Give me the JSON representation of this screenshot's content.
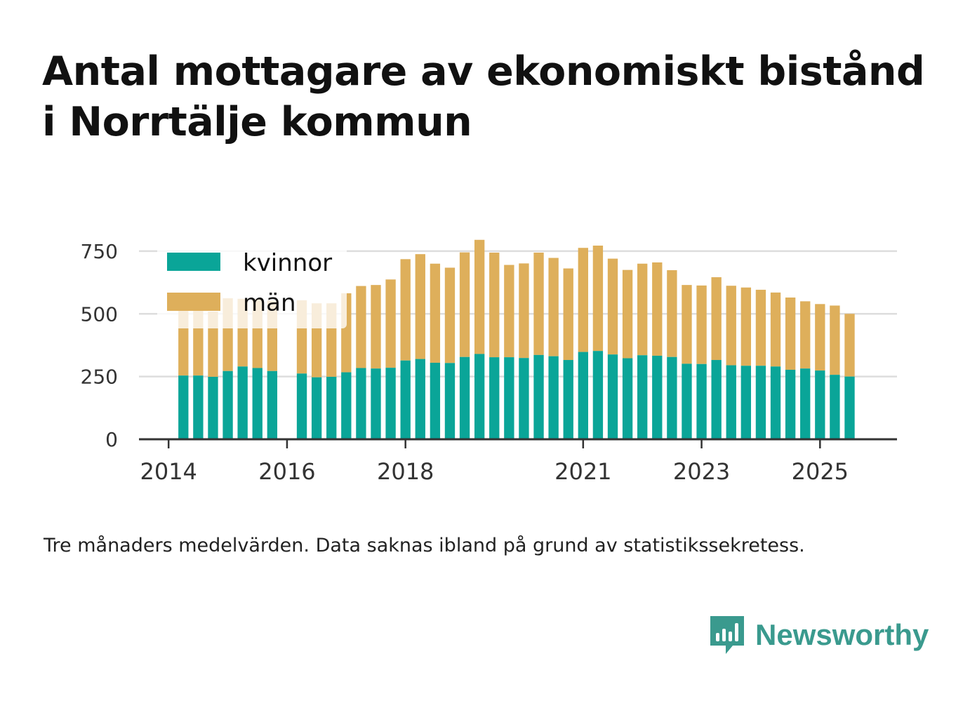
{
  "title_line1": "Antal mottagare av ekonomiskt bistånd",
  "title_line2": "i Norrtälje kommun",
  "note": "Tre månaders medelvärden. Data saknas ibland på grund av statistikssekretess.",
  "brand": {
    "name": "Newsworthy",
    "icon": "newsworthy-logo-icon",
    "color": "#3a9a8e"
  },
  "chart_data": {
    "type": "bar",
    "stacked": true,
    "ylim": [
      0,
      800
    ],
    "yticks": [
      0,
      250,
      500,
      750
    ],
    "xlim": [
      2013.5,
      2026.3
    ],
    "xticks": [
      2014,
      2016,
      2018,
      2021,
      2023,
      2025
    ],
    "legend": {
      "placement": "top-left"
    },
    "x": [
      2014.25,
      2014.5,
      2014.75,
      2015.0,
      2015.25,
      2015.5,
      2015.75,
      null,
      2016.25,
      2016.5,
      2016.75,
      2017.0,
      2017.25,
      2017.5,
      2017.75,
      2018.0,
      2018.25,
      2018.5,
      2018.75,
      2019.0,
      2019.25,
      2019.5,
      2019.75,
      2020.0,
      2020.25,
      2020.5,
      2020.75,
      2021.0,
      2021.25,
      2021.5,
      2021.75,
      2022.0,
      2022.25,
      2022.5,
      2022.75,
      2023.0,
      2023.25,
      2023.5,
      2023.75,
      2024.0,
      2024.25,
      2024.5,
      2024.75,
      2025.0,
      2025.25,
      2025.5
    ],
    "series": [
      {
        "name": "kvinnor",
        "color": "#0aa598",
        "values": [
          254,
          254,
          249,
          272,
          290,
          284,
          272,
          null,
          262,
          247,
          249,
          267,
          284,
          282,
          285,
          314,
          320,
          305,
          304,
          328,
          340,
          327,
          327,
          324,
          336,
          331,
          316,
          348,
          352,
          338,
          323,
          335,
          333,
          328,
          301,
          300,
          316,
          295,
          293,
          293,
          290,
          277,
          282,
          274,
          257,
          250
        ]
      },
      {
        "name": "män",
        "color": "#deaf5b",
        "values": [
          276,
          266,
          260,
          290,
          270,
          275,
          281,
          null,
          292,
          295,
          293,
          315,
          327,
          333,
          352,
          404,
          418,
          395,
          380,
          417,
          455,
          417,
          368,
          377,
          408,
          392,
          365,
          415,
          420,
          382,
          352,
          365,
          372,
          346,
          314,
          313,
          330,
          317,
          312,
          303,
          295,
          288,
          268,
          265,
          276,
          250
        ]
      }
    ]
  }
}
